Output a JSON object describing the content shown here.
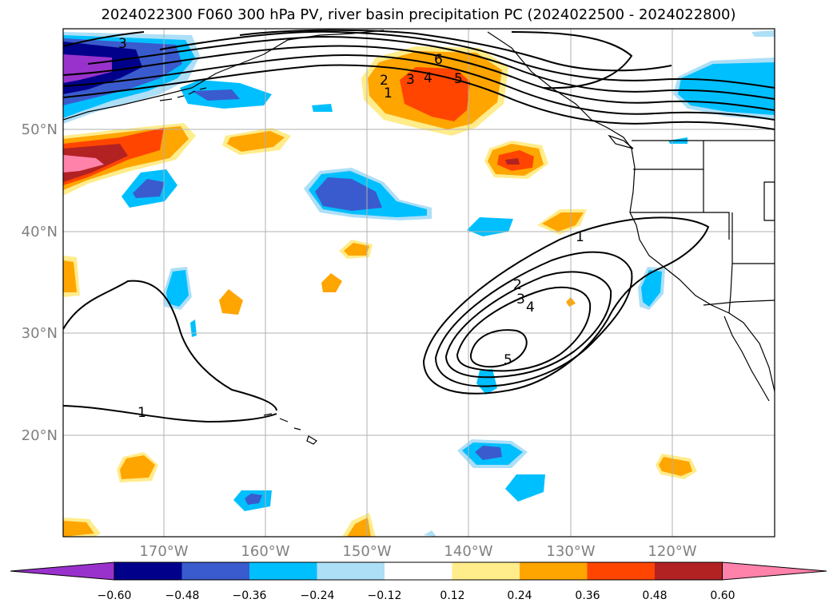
{
  "title": "2024022300 F060 300 hPa PV, river basin precipitation PC (2024022500 - 2024022800)",
  "lat_labels": [
    "50°N",
    "40°N",
    "30°N",
    "20°N"
  ],
  "lon_labels": [
    "170°W",
    "160°W",
    "150°W",
    "140°W",
    "130°W",
    "120°W"
  ],
  "contour_labels": [
    "3",
    "6",
    "2",
    "3",
    "4",
    "5",
    "1",
    "1",
    "2",
    "3",
    "4",
    "5",
    "1"
  ],
  "colorbar": {
    "ticks": [
      "−0.60",
      "−0.48",
      "−0.36",
      "−0.24",
      "−0.12",
      "0.12",
      "0.24",
      "0.36",
      "0.48",
      "0.60"
    ],
    "colors": [
      "#9932CC",
      "#00008B",
      "#3A5BCD",
      "#00BFFF",
      "#ADDFF7",
      "#FFFFFF",
      "#FFEC8B",
      "#FFA500",
      "#FF4500",
      "#B22222",
      "#FF82AB"
    ]
  },
  "fill_colors": {
    "purple": "#9932CC",
    "navy": "#00008B",
    "royal": "#3A5BCD",
    "sky": "#00BFFF",
    "pale_blue": "#ADDFF7",
    "pale_yellow": "#FFEC8B",
    "orange": "#FFA500",
    "red_orange": "#FF4500",
    "firebrick": "#B22222",
    "pink": "#FF82AB"
  }
}
